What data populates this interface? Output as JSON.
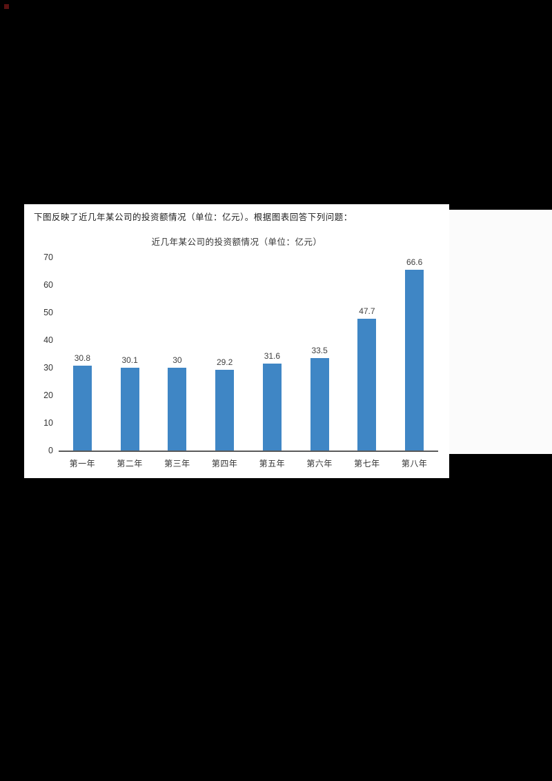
{
  "page": {
    "question_text": "下图反映了近几年某公司的投资额情况（单位：亿元）。根据图表回答下列问题："
  },
  "chart_data": {
    "type": "bar",
    "title": "近几年某公司的投资额情况（单位：亿元）",
    "categories": [
      "第一年",
      "第二年",
      "第三年",
      "第四年",
      "第五年",
      "第六年",
      "第七年",
      "第八年"
    ],
    "values": [
      30.8,
      30.1,
      30,
      29.2,
      31.6,
      33.5,
      47.7,
      66.6
    ],
    "data_labels": [
      "30.8",
      "30.1",
      "30",
      "29.2",
      "31.6",
      "33.5",
      "47.7",
      "66.6"
    ],
    "xlabel": "",
    "ylabel": "",
    "ylim": [
      0,
      70
    ],
    "yticks": [
      0,
      10,
      20,
      30,
      40,
      50,
      60,
      70
    ],
    "bar_color": "#3f86c5",
    "grid": false,
    "legend": "none"
  }
}
